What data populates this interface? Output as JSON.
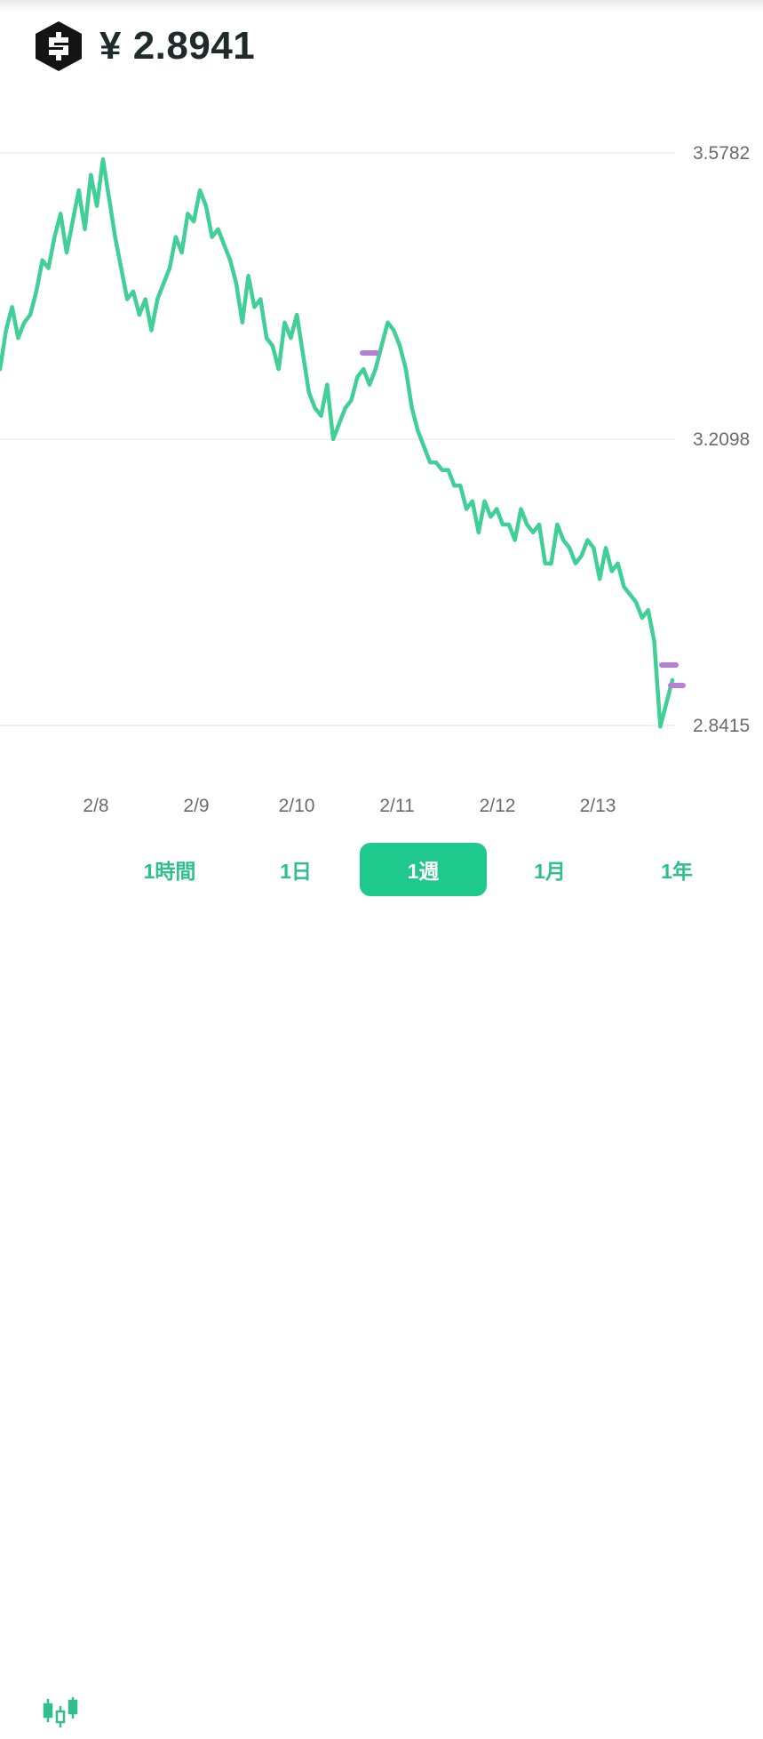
{
  "header": {
    "currency_symbol": "¥",
    "price": "¥ 2.8941",
    "logo_icon": "iost-hexagon-logo"
  },
  "colors": {
    "line": "#3fcf97",
    "grid": "#e6e6e6",
    "marker": "#b57fd6",
    "active_tab": "#1fc88c",
    "tab_text": "#2ebf8c"
  },
  "chart_data": {
    "type": "line",
    "title": "",
    "xlabel": "",
    "ylabel": "",
    "y_ticks": [
      "3.5782",
      "3.2098",
      "2.8415"
    ],
    "ylim": [
      2.8415,
      3.5782
    ],
    "x_ticks": [
      "2/8",
      "2/9",
      "2/10",
      "2/11",
      "2/12",
      "2/13"
    ],
    "grid": "horizontal",
    "series": [
      {
        "values": [
          3.3,
          3.35,
          3.38,
          3.34,
          3.36,
          3.37,
          3.4,
          3.44,
          3.43,
          3.47,
          3.5,
          3.45,
          3.49,
          3.53,
          3.48,
          3.55,
          3.51,
          3.57,
          3.52,
          3.47,
          3.43,
          3.39,
          3.4,
          3.37,
          3.39,
          3.35,
          3.39,
          3.41,
          3.43,
          3.47,
          3.45,
          3.5,
          3.49,
          3.53,
          3.51,
          3.47,
          3.48,
          3.46,
          3.44,
          3.41,
          3.36,
          3.42,
          3.38,
          3.39,
          3.34,
          3.33,
          3.3,
          3.36,
          3.34,
          3.37,
          3.32,
          3.27,
          3.25,
          3.24,
          3.28,
          3.21,
          3.23,
          3.25,
          3.26,
          3.29,
          3.3,
          3.28,
          3.3,
          3.33,
          3.36,
          3.35,
          3.33,
          3.3,
          3.25,
          3.22,
          3.2,
          3.18,
          3.18,
          3.17,
          3.17,
          3.15,
          3.15,
          3.12,
          3.13,
          3.09,
          3.13,
          3.11,
          3.12,
          3.1,
          3.1,
          3.08,
          3.12,
          3.1,
          3.09,
          3.1,
          3.05,
          3.05,
          3.1,
          3.08,
          3.07,
          3.05,
          3.06,
          3.08,
          3.07,
          3.03,
          3.07,
          3.04,
          3.05,
          3.02,
          3.01,
          3.0,
          2.98,
          2.99,
          2.95,
          2.84,
          2.87,
          2.9
        ]
      }
    ]
  },
  "tabs": {
    "candle_icon": "candlestick-chart-icon",
    "items": [
      {
        "label": "1時間",
        "active": false
      },
      {
        "label": "1日",
        "active": false
      },
      {
        "label": "1週",
        "active": true
      },
      {
        "label": "1月",
        "active": false
      },
      {
        "label": "1年",
        "active": false
      }
    ]
  }
}
